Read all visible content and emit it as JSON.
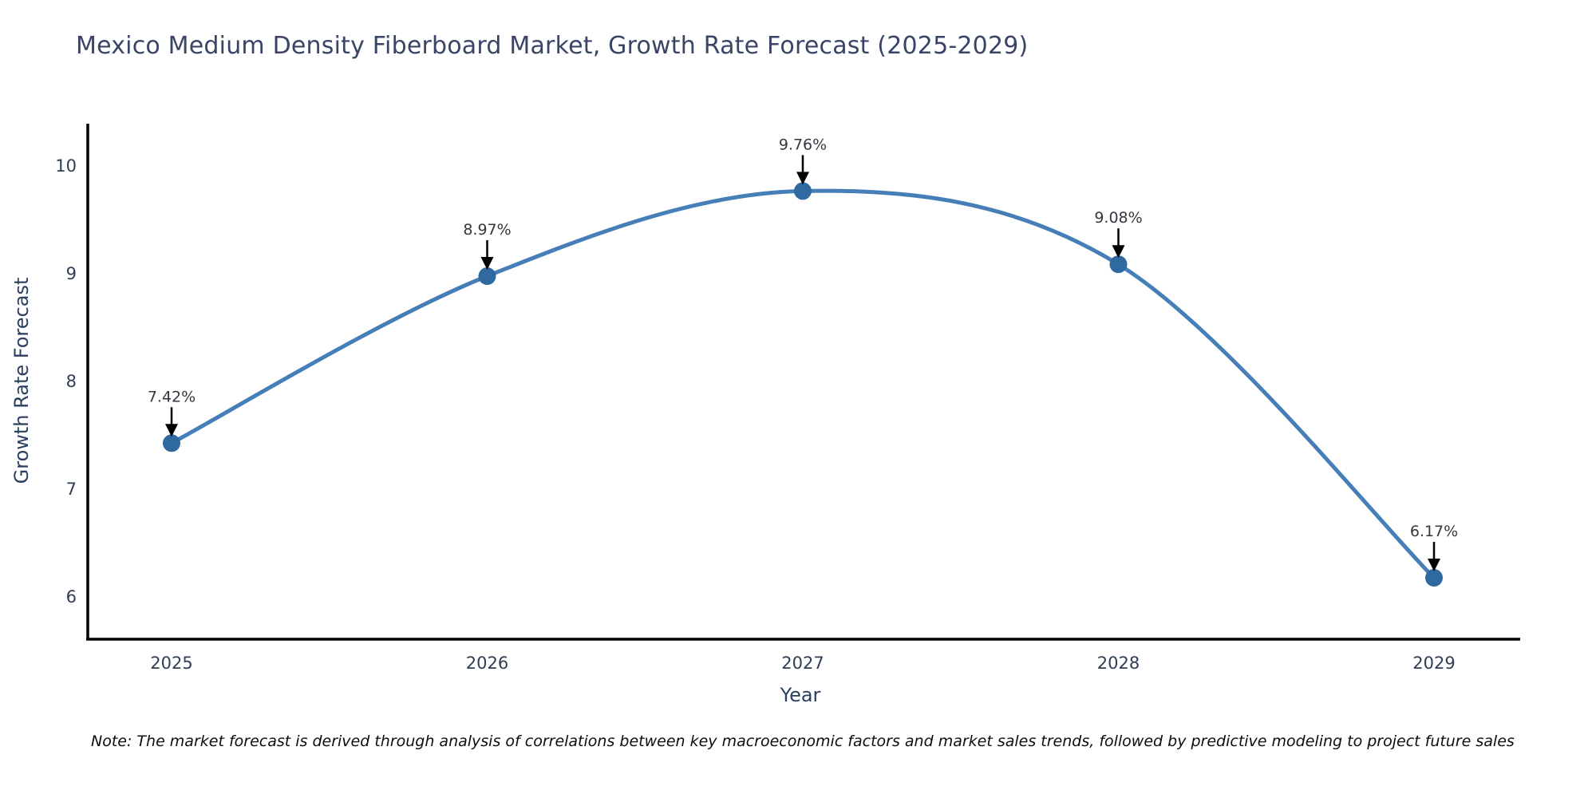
{
  "chart_data": {
    "type": "line",
    "line_shape": "spline",
    "title": "Mexico Medium Density Fiberboard Market, Growth Rate Forecast (2025-2029)",
    "xlabel": "Year",
    "ylabel": "Growth Rate Forecast",
    "x": [
      2025,
      2026,
      2027,
      2028,
      2029
    ],
    "values": [
      7.42,
      8.97,
      9.76,
      9.08,
      6.17
    ],
    "point_labels": [
      "7.42%",
      "8.97%",
      "9.76%",
      "9.08%",
      "6.17%"
    ],
    "x_tick_labels": [
      "2025",
      "2026",
      "2027",
      "2028",
      "2029"
    ],
    "y_ticks": [
      6,
      7,
      8,
      9,
      10
    ],
    "ylim": [
      5.6,
      10.4
    ],
    "grid": false,
    "legend": "none",
    "colors": {
      "line": "#467fb8",
      "marker": "#2f69a0",
      "arrow": "#000000",
      "axis_line": "#000000",
      "title_text": "#3a4466",
      "axis_text": "#2a3f5f"
    }
  },
  "note": "Note: The market forecast is derived through analysis of correlations between key macroeconomic factors and market sales trends, followed by predictive modeling to project future sales"
}
